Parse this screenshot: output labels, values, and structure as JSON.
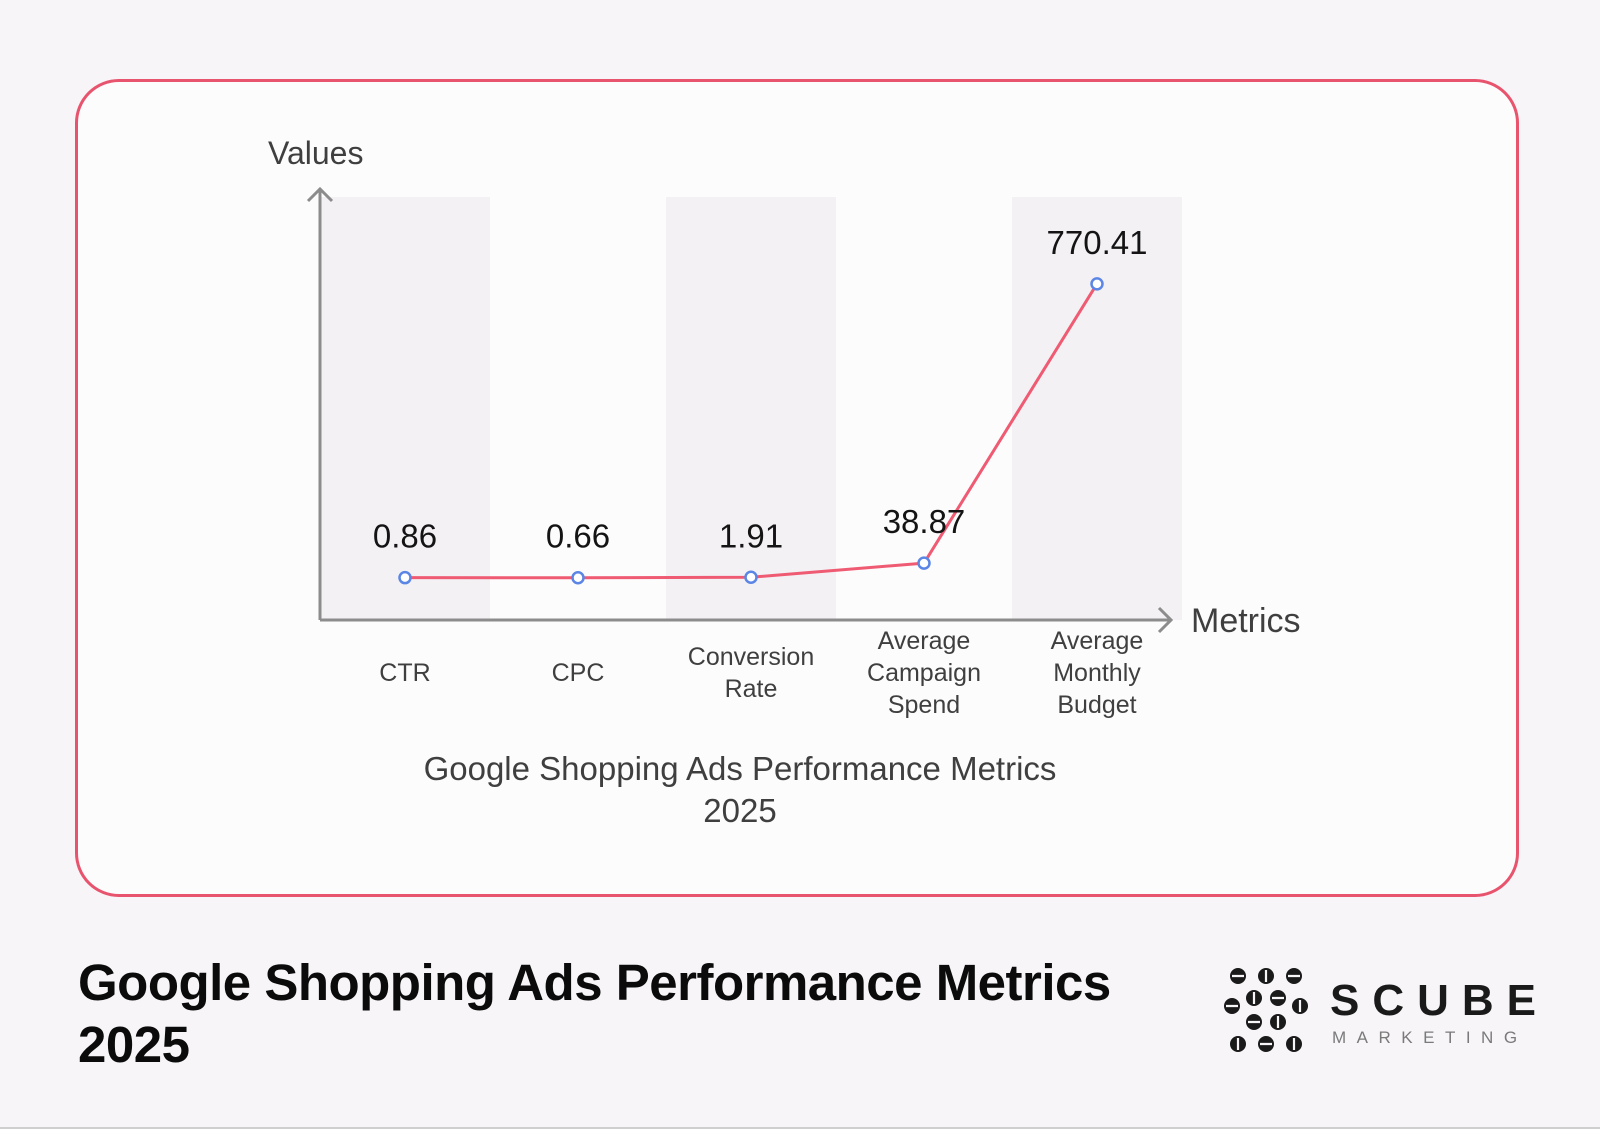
{
  "chart_data": {
    "type": "line",
    "title_lines": [
      "Google Shopping Ads Performance Metrics",
      "2025"
    ],
    "xlabel": "Metrics",
    "ylabel": "Values",
    "categories": [
      [
        "CTR"
      ],
      [
        "CPC"
      ],
      [
        "Conversion",
        "Rate"
      ],
      [
        "Average",
        "Campaign",
        "Spend"
      ],
      [
        "Average",
        "Monthly",
        "Budget"
      ]
    ],
    "values": [
      0.86,
      0.66,
      1.91,
      38.87,
      770.41
    ],
    "data_labels": [
      "0.86",
      "0.66",
      "1.91",
      "38.87",
      "770.41"
    ],
    "ylim": [
      0,
      880
    ],
    "colors": {
      "line": "#ef5b72",
      "marker": "#5b86e5",
      "band": "#f3f1f4",
      "axis": "#8c8c8c"
    }
  },
  "footer": {
    "title_lines": [
      "Google Shopping Ads Performance Metrics",
      "2025"
    ]
  },
  "logo": {
    "word": "SCUBE",
    "sub": "MARKETING",
    "icon": "scube-logo-icon"
  }
}
